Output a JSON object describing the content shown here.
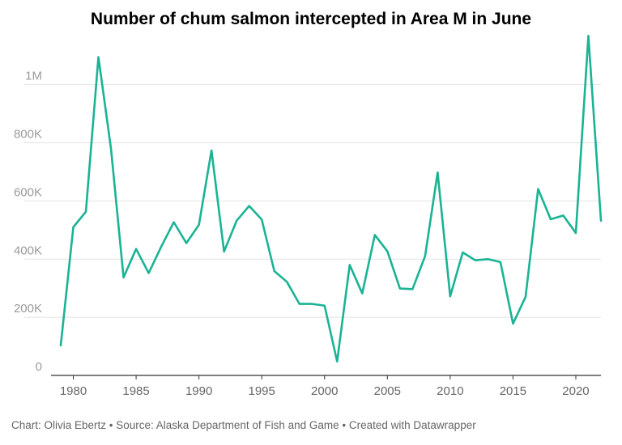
{
  "chart_data": {
    "type": "line",
    "title": "Number of chum salmon intercepted in Area M in June",
    "x": [
      1979,
      1980,
      1981,
      1982,
      1983,
      1984,
      1985,
      1986,
      1987,
      1988,
      1989,
      1990,
      1991,
      1992,
      1993,
      1994,
      1995,
      1996,
      1997,
      1998,
      1999,
      2000,
      2001,
      2002,
      2003,
      2004,
      2005,
      2006,
      2007,
      2008,
      2009,
      2010,
      2011,
      2012,
      2013,
      2014,
      2015,
      2016,
      2017,
      2018,
      2019,
      2020,
      2021,
      2022
    ],
    "series": [
      {
        "values": [
          103000,
          510000,
          563000,
          1095000,
          780000,
          337000,
          435000,
          352000,
          443000,
          527000,
          455000,
          518000,
          774000,
          426000,
          532000,
          583000,
          536000,
          359000,
          322000,
          246000,
          246000,
          240000,
          48000,
          380000,
          282000,
          483000,
          427000,
          299000,
          297000,
          410000,
          698000,
          272000,
          423000,
          396000,
          400000,
          390000,
          178000,
          270000,
          641000,
          537000,
          550000,
          490000,
          1168000,
          532000
        ]
      }
    ],
    "ylim": [
      0,
      1180000
    ],
    "yticks": [
      0,
      200000,
      400000,
      600000,
      800000,
      1000000
    ],
    "ytick_labels": [
      "0",
      "200K",
      "400K",
      "600K",
      "800K",
      "1M"
    ],
    "xticks": [
      1980,
      1985,
      1990,
      1995,
      2000,
      2005,
      2010,
      2015,
      2020
    ],
    "xtick_labels": [
      "1980",
      "1985",
      "1990",
      "1995",
      "2000",
      "2005",
      "2010",
      "2015",
      "2020"
    ],
    "xlim": [
      1979,
      2022
    ],
    "grid": true,
    "line_color": "#1ab394"
  },
  "footer": "Chart: Olivia Ebertz • Source: Alaska Department of Fish and Game • Created with Datawrapper"
}
